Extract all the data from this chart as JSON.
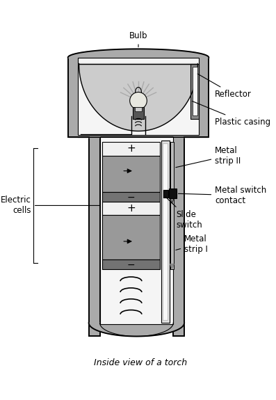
{
  "title": "Inside view of a torch",
  "background_color": "#ffffff",
  "labels": {
    "bulb": "Bulb",
    "reflector": "Reflector",
    "plastic_casing": "Plastic casing",
    "metal_strip_II": "Metal\nstrip II",
    "metal_switch_contact": "Metal switch\ncontact",
    "slide_switch": "Slide\nswitch",
    "metal_strip_I": "Metal\nstrip I",
    "electric_cells": "Electric\ncells"
  },
  "colors": {
    "black": "#000000",
    "casing_gray": "#aaaaaa",
    "casing_dark": "#888888",
    "inner_white": "#f5f5f5",
    "battery_white": "#f0f0f0",
    "battery_gray": "#999999",
    "battery_dark": "#737373",
    "strip_gray": "#bbbbbb",
    "switch_black": "#111111",
    "reflector_gray": "#cccccc",
    "bulb_base_dark": "#555555",
    "ray_gray": "#aaaaaa",
    "white": "#ffffff",
    "mid_gray": "#888888"
  }
}
